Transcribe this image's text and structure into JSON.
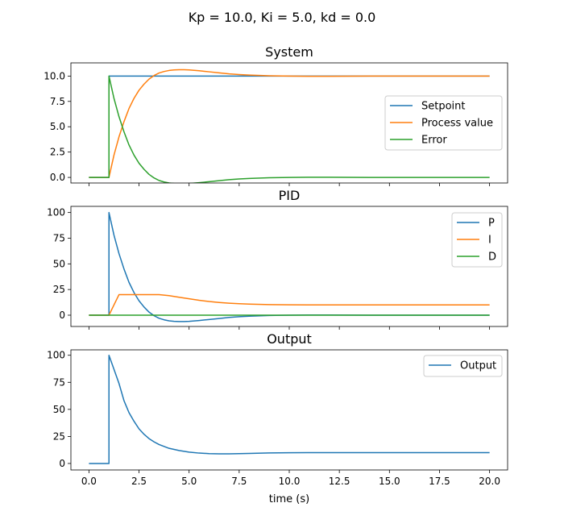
{
  "figure": {
    "suptitle": "Kp = 10.0, Ki = 5.0, kd = 0.0"
  },
  "colors": {
    "blue": "#1f77b4",
    "orange": "#ff7f0e",
    "green": "#2ca02c"
  },
  "chart_data": [
    {
      "type": "line",
      "title": "System",
      "xlabel": "",
      "ylabel": "",
      "xlim": [
        -0.9,
        20.9
      ],
      "ylim": [
        -0.55,
        11.3
      ],
      "xticks": [
        0,
        2.5,
        5,
        7.5,
        10,
        12.5,
        15,
        17.5,
        20
      ],
      "xtick_labels": [],
      "yticks": [
        0,
        2.5,
        5,
        7.5,
        10
      ],
      "ytick_labels": [
        "0.0",
        "2.5",
        "5.0",
        "7.5",
        "10.0"
      ],
      "legend": "center-right",
      "series": [
        {
          "name": "Setpoint",
          "color": "blue",
          "x": [
            0,
            1,
            1,
            20
          ],
          "y": [
            0,
            0,
            10,
            10
          ]
        },
        {
          "name": "Process value",
          "color": "orange",
          "x": [
            0,
            1,
            1.25,
            1.5,
            1.75,
            2,
            2.25,
            2.5,
            2.75,
            3,
            3.25,
            3.5,
            3.75,
            4,
            4.25,
            4.5,
            4.75,
            5,
            5.5,
            6,
            6.5,
            7,
            7.5,
            8,
            9,
            10,
            11,
            12,
            13,
            14,
            16,
            18,
            20
          ],
          "y": [
            0,
            0,
            2.2,
            4.0,
            5.5,
            6.8,
            7.8,
            8.6,
            9.2,
            9.7,
            10.05,
            10.3,
            10.45,
            10.55,
            10.6,
            10.62,
            10.62,
            10.6,
            10.52,
            10.42,
            10.32,
            10.22,
            10.15,
            10.1,
            10.03,
            10.0,
            9.98,
            9.98,
            9.99,
            10.0,
            10.0,
            10.0,
            10.0
          ]
        },
        {
          "name": "Error",
          "color": "green",
          "x": [
            0,
            1,
            1,
            1.25,
            1.5,
            1.75,
            2,
            2.25,
            2.5,
            2.75,
            3,
            3.25,
            3.5,
            3.75,
            4,
            4.25,
            4.5,
            4.75,
            5,
            5.5,
            6,
            6.5,
            7,
            7.5,
            8,
            9,
            10,
            11,
            12,
            13,
            14,
            16,
            18,
            20
          ],
          "y": [
            0,
            0,
            10,
            7.8,
            6.0,
            4.5,
            3.2,
            2.2,
            1.4,
            0.8,
            0.3,
            -0.05,
            -0.3,
            -0.45,
            -0.55,
            -0.6,
            -0.62,
            -0.62,
            -0.6,
            -0.52,
            -0.42,
            -0.32,
            -0.22,
            -0.15,
            -0.1,
            -0.03,
            0.0,
            0.02,
            0.02,
            0.01,
            0.0,
            0.0,
            0.0,
            0.0
          ]
        }
      ]
    },
    {
      "type": "line",
      "title": "PID",
      "xlabel": "",
      "ylabel": "",
      "xlim": [
        -0.9,
        20.9
      ],
      "ylim": [
        -11,
        106
      ],
      "xticks": [
        0,
        2.5,
        5,
        7.5,
        10,
        12.5,
        15,
        17.5,
        20
      ],
      "xtick_labels": [],
      "yticks": [
        0,
        25,
        50,
        75,
        100
      ],
      "ytick_labels": [
        "0",
        "25",
        "50",
        "75",
        "100"
      ],
      "legend": "top-right",
      "series": [
        {
          "name": "P",
          "color": "blue",
          "x": [
            0,
            1,
            1,
            1.25,
            1.5,
            1.75,
            2,
            2.25,
            2.5,
            2.75,
            3,
            3.25,
            3.5,
            3.75,
            4,
            4.25,
            4.5,
            4.75,
            5,
            5.5,
            6,
            6.5,
            7,
            7.5,
            8,
            9,
            10,
            11,
            12,
            13,
            14,
            16,
            18,
            20
          ],
          "y": [
            0,
            0,
            100,
            78,
            60,
            45,
            32,
            22,
            14,
            8,
            3,
            -0.5,
            -3,
            -4.5,
            -5.5,
            -6,
            -6.2,
            -6.2,
            -6,
            -5.2,
            -4.2,
            -3.2,
            -2.2,
            -1.5,
            -1,
            -0.3,
            0,
            0.2,
            0.2,
            0.1,
            0,
            0,
            0,
            0
          ]
        },
        {
          "name": "I",
          "color": "orange",
          "x": [
            0,
            1,
            1.5,
            2,
            2.5,
            3,
            3.5,
            4,
            4.5,
            5,
            5.5,
            6,
            6.5,
            7,
            7.5,
            8,
            9,
            10,
            11,
            12,
            14,
            16,
            18,
            20
          ],
          "y": [
            0,
            0,
            20,
            20,
            20,
            20,
            20,
            19,
            17.5,
            16,
            14.5,
            13.3,
            12.4,
            11.7,
            11.2,
            10.8,
            10.3,
            10.1,
            10,
            10,
            10,
            10,
            10,
            10
          ]
        },
        {
          "name": "D",
          "color": "green",
          "x": [
            0,
            20
          ],
          "y": [
            0,
            0
          ]
        }
      ]
    },
    {
      "type": "line",
      "title": "Output",
      "xlabel": "time (s)",
      "ylabel": "",
      "xlim": [
        -0.9,
        20.9
      ],
      "ylim": [
        -6,
        105
      ],
      "xticks": [
        0,
        2.5,
        5,
        7.5,
        10,
        12.5,
        15,
        17.5,
        20
      ],
      "xtick_labels": [
        "0.0",
        "2.5",
        "5.0",
        "7.5",
        "10.0",
        "12.5",
        "15.0",
        "17.5",
        "20.0"
      ],
      "yticks": [
        0,
        25,
        50,
        75,
        100
      ],
      "ytick_labels": [
        "0",
        "25",
        "50",
        "75",
        "100"
      ],
      "legend": "top-right",
      "series": [
        {
          "name": "Output",
          "color": "blue",
          "x": [
            0,
            1,
            1,
            1.25,
            1.5,
            1.75,
            2,
            2.25,
            2.5,
            2.75,
            3,
            3.25,
            3.5,
            4,
            4.5,
            5,
            5.5,
            6,
            6.5,
            7,
            7.5,
            8,
            9,
            10,
            11,
            12,
            14,
            16,
            18,
            20
          ],
          "y": [
            0,
            0,
            100,
            87,
            74,
            58,
            47,
            39,
            32,
            27,
            23,
            20,
            17.5,
            14,
            12,
            10.5,
            9.6,
            9.1,
            8.9,
            8.9,
            9.1,
            9.3,
            9.7,
            9.9,
            10,
            10,
            10,
            10,
            10,
            10
          ]
        }
      ]
    }
  ]
}
